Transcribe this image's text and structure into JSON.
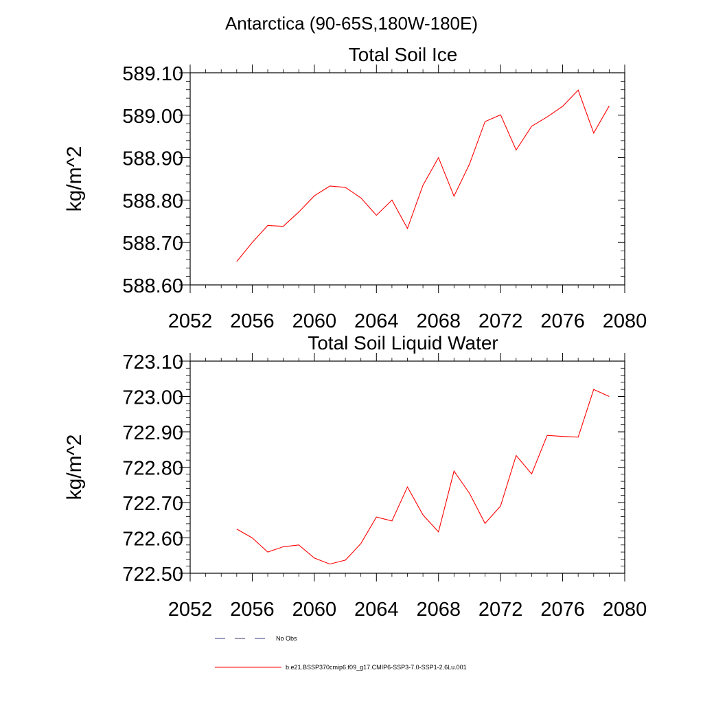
{
  "figure_title": "Antarctica (90-65S,180W-180E)",
  "legend": [
    {
      "label": "No Obs",
      "style": "dashed",
      "color": "#3a3a7a"
    },
    {
      "label": "b.e21.BSSP370cmip6.f09_g17.CMIP6-SSP3-7.0-SSP1-2.6Lu.001",
      "style": "solid",
      "color": "#ff0000"
    }
  ],
  "chart_data": [
    {
      "type": "line",
      "title": "Total Soil Ice",
      "xlabel": "",
      "ylabel": "kg/m^2",
      "xlim": [
        2052,
        2080
      ],
      "ylim": [
        588.6,
        589.1
      ],
      "xticks": [
        "2052",
        "2056",
        "2060",
        "2064",
        "2068",
        "2072",
        "2076",
        "2080"
      ],
      "yticks": [
        "588.60",
        "588.70",
        "588.80",
        "588.90",
        "589.00",
        "589.10"
      ],
      "grid": false,
      "series": [
        {
          "color": "#ff0000",
          "x": [
            2055,
            2056,
            2057,
            2058,
            2059,
            2060,
            2061,
            2062,
            2063,
            2064,
            2065,
            2066,
            2067,
            2068,
            2069,
            2070,
            2071,
            2072,
            2073,
            2074,
            2075,
            2076,
            2077,
            2078,
            2079
          ],
          "values": [
            588.655,
            588.7,
            588.74,
            588.738,
            588.772,
            588.81,
            588.833,
            588.83,
            588.805,
            588.764,
            588.8,
            588.733,
            588.835,
            588.9,
            588.809,
            588.885,
            588.985,
            589.001,
            588.918,
            588.974,
            588.996,
            589.021,
            589.059,
            588.958,
            589.022
          ]
        }
      ]
    },
    {
      "type": "line",
      "title": "Total Soil Liquid Water",
      "xlabel": "",
      "ylabel": "kg/m^2",
      "xlim": [
        2052,
        2080
      ],
      "ylim": [
        722.5,
        723.1
      ],
      "xticks": [
        "2052",
        "2056",
        "2060",
        "2064",
        "2068",
        "2072",
        "2076",
        "2080"
      ],
      "yticks": [
        "722.50",
        "722.60",
        "722.70",
        "722.80",
        "722.90",
        "723.00",
        "723.10"
      ],
      "grid": false,
      "series": [
        {
          "color": "#ff0000",
          "x": [
            2055,
            2056,
            2057,
            2058,
            2059,
            2060,
            2061,
            2062,
            2063,
            2064,
            2065,
            2066,
            2067,
            2068,
            2069,
            2070,
            2071,
            2072,
            2073,
            2074,
            2075,
            2076,
            2077,
            2078,
            2079
          ],
          "values": [
            722.625,
            722.6,
            722.56,
            722.575,
            722.58,
            722.543,
            722.526,
            722.537,
            722.584,
            722.659,
            722.648,
            722.744,
            722.665,
            722.617,
            722.789,
            722.726,
            722.641,
            722.69,
            722.833,
            722.781,
            722.89,
            722.887,
            722.885,
            723.02,
            723.0
          ]
        }
      ]
    }
  ]
}
